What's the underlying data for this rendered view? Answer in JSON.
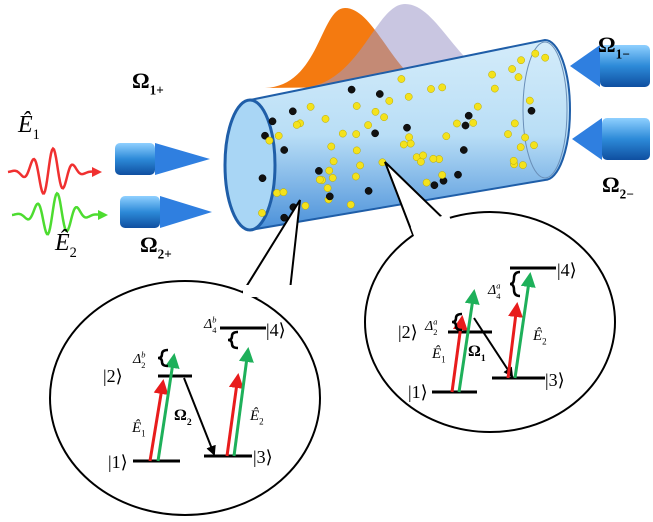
{
  "probe_fields": [
    {
      "symbol": "Ê",
      "sub": "1"
    },
    {
      "symbol": "Ê",
      "sub": "2"
    }
  ],
  "control_fields": {
    "forward": [
      {
        "symbol": "Ω",
        "sub": "1+"
      },
      {
        "symbol": "Ω",
        "sub": "2+"
      }
    ],
    "backward": [
      {
        "symbol": "Ω",
        "sub": "1−"
      },
      {
        "symbol": "Ω",
        "sub": "2−"
      }
    ]
  },
  "left_scheme": {
    "levels": [
      "|1⟩",
      "|2⟩",
      "|3⟩",
      "|4⟩"
    ],
    "detunings": [
      {
        "symbol": "Δ",
        "sub": "2",
        "sup": "b"
      },
      {
        "symbol": "Δ",
        "sub": "4",
        "sup": "b"
      }
    ],
    "fields": [
      {
        "symbol": "Ê",
        "sub": "1"
      },
      {
        "symbol": "Ê",
        "sub": "2"
      },
      {
        "symbol": "Ω",
        "sub": "2"
      }
    ]
  },
  "right_scheme": {
    "levels": [
      "|1⟩",
      "|2⟩",
      "|3⟩",
      "|4⟩"
    ],
    "detunings": [
      {
        "symbol": "Δ",
        "sub": "2",
        "sup": "a"
      },
      {
        "symbol": "Δ",
        "sub": "4",
        "sup": "a"
      }
    ],
    "fields": [
      {
        "symbol": "Ê",
        "sub": "1"
      },
      {
        "symbol": "Ê",
        "sub": "2"
      },
      {
        "symbol": "Ω",
        "sub": "1"
      }
    ]
  }
}
